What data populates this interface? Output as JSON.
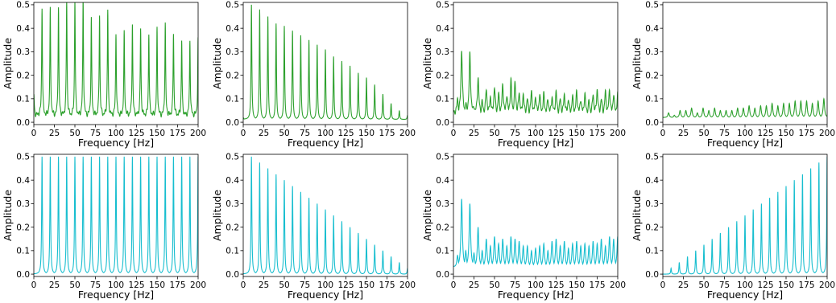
{
  "figure": {
    "layout": "2 rows x 4 columns"
  },
  "chart_data": [
    {
      "type": "line",
      "title": "",
      "xlabel": "Frequency [Hz]",
      "ylabel": "Amplitude",
      "xlim": [
        0,
        200
      ],
      "ylim": [
        -0.01,
        0.51
      ],
      "xticks": [
        0,
        25,
        50,
        75,
        100,
        125,
        150,
        175,
        200
      ],
      "yticks": [
        0.0,
        0.1,
        0.2,
        0.3,
        0.4,
        0.5
      ],
      "color": "#2ca02c",
      "series": [
        {
          "x": [
            0,
            10,
            20,
            30,
            40,
            50,
            60,
            70,
            80,
            90,
            100,
            110,
            120,
            130,
            140,
            150,
            160,
            170,
            180,
            190,
            200
          ],
          "peaks": [
            0.12,
            0.49,
            0.48,
            0.49,
            0.52,
            0.52,
            0.52,
            0.44,
            0.46,
            0.48,
            0.38,
            0.38,
            0.42,
            0.4,
            0.38,
            0.4,
            0.42,
            0.38,
            0.35,
            0.35,
            0.35
          ],
          "baseline": 0.03
        }
      ]
    },
    {
      "type": "line",
      "title": "",
      "xlabel": "Frequency [Hz]",
      "ylabel": "Amplitude",
      "xlim": [
        0,
        200
      ],
      "ylim": [
        -0.01,
        0.51
      ],
      "xticks": [
        0,
        25,
        50,
        75,
        100,
        125,
        150,
        175,
        200
      ],
      "yticks": [
        0.0,
        0.1,
        0.2,
        0.3,
        0.4,
        0.5
      ],
      "color": "#2ca02c",
      "series": [
        {
          "x": [
            0,
            10,
            20,
            30,
            40,
            50,
            60,
            70,
            80,
            90,
            100,
            110,
            120,
            130,
            140,
            150,
            160,
            170,
            180,
            190,
            200
          ],
          "peaks": [
            0.02,
            0.5,
            0.48,
            0.45,
            0.42,
            0.41,
            0.39,
            0.37,
            0.35,
            0.33,
            0.31,
            0.28,
            0.26,
            0.24,
            0.21,
            0.19,
            0.16,
            0.12,
            0.08,
            0.05,
            0.03
          ],
          "baseline": 0.012
        }
      ]
    },
    {
      "type": "line",
      "title": "",
      "xlabel": "Frequency [Hz]",
      "ylabel": "Amplitude",
      "xlim": [
        0,
        200
      ],
      "ylim": [
        -0.01,
        0.51
      ],
      "xticks": [
        0,
        25,
        50,
        75,
        100,
        125,
        150,
        175,
        200
      ],
      "yticks": [
        0.0,
        0.1,
        0.2,
        0.3,
        0.4,
        0.5
      ],
      "color": "#2ca02c",
      "series": [
        {
          "x": [
            0,
            5,
            10,
            15,
            20,
            25,
            30,
            35,
            40,
            45,
            50,
            55,
            60,
            65,
            70,
            75,
            80,
            85,
            90,
            95,
            100,
            105,
            110,
            115,
            120,
            125,
            130,
            135,
            140,
            145,
            150,
            155,
            160,
            165,
            170,
            175,
            180,
            185,
            190,
            195,
            200
          ],
          "peaks": [
            0.03,
            0.1,
            0.31,
            0.08,
            0.29,
            0.07,
            0.19,
            0.09,
            0.14,
            0.11,
            0.15,
            0.12,
            0.16,
            0.12,
            0.18,
            0.17,
            0.13,
            0.12,
            0.1,
            0.13,
            0.11,
            0.12,
            0.12,
            0.1,
            0.11,
            0.13,
            0.1,
            0.12,
            0.1,
            0.11,
            0.13,
            0.1,
            0.12,
            0.09,
            0.12,
            0.14,
            0.1,
            0.13,
            0.14,
            0.12,
            0.12
          ],
          "baseline": 0.04
        }
      ]
    },
    {
      "type": "line",
      "title": "",
      "xlabel": "Frequency [Hz]",
      "ylabel": "Amplitude",
      "xlim": [
        0,
        200
      ],
      "ylim": [
        -0.01,
        0.51
      ],
      "xticks": [
        0,
        25,
        50,
        75,
        100,
        125,
        150,
        175,
        200
      ],
      "yticks": [
        0.0,
        0.1,
        0.2,
        0.3,
        0.4,
        0.5
      ],
      "color": "#2ca02c",
      "series": [
        {
          "x": [
            0,
            7,
            14,
            21,
            28,
            35,
            42,
            49,
            56,
            63,
            70,
            77,
            84,
            91,
            98,
            105,
            112,
            119,
            126,
            133,
            140,
            147,
            154,
            161,
            168,
            175,
            182,
            189,
            196
          ],
          "peaks": [
            0.02,
            0.04,
            0.03,
            0.05,
            0.05,
            0.06,
            0.04,
            0.06,
            0.05,
            0.06,
            0.05,
            0.05,
            0.05,
            0.06,
            0.06,
            0.07,
            0.06,
            0.07,
            0.07,
            0.08,
            0.07,
            0.08,
            0.08,
            0.09,
            0.09,
            0.09,
            0.08,
            0.09,
            0.1
          ],
          "baseline": 0.02
        }
      ]
    },
    {
      "type": "line",
      "title": "",
      "xlabel": "Frequency [Hz]",
      "ylabel": "Amplitude",
      "xlim": [
        0,
        200
      ],
      "ylim": [
        -0.01,
        0.51
      ],
      "xticks": [
        0,
        25,
        50,
        75,
        100,
        125,
        150,
        175,
        200
      ],
      "yticks": [
        0.0,
        0.1,
        0.2,
        0.3,
        0.4,
        0.5
      ],
      "color": "#17becf",
      "series": [
        {
          "x": [
            10,
            20,
            30,
            40,
            50,
            60,
            70,
            80,
            90,
            100,
            110,
            120,
            130,
            140,
            150,
            160,
            170,
            180,
            190,
            200
          ],
          "peaks": [
            0.5,
            0.5,
            0.5,
            0.5,
            0.5,
            0.5,
            0.5,
            0.5,
            0.5,
            0.5,
            0.5,
            0.5,
            0.5,
            0.5,
            0.5,
            0.5,
            0.5,
            0.5,
            0.5,
            0.5
          ],
          "baseline": 0.0
        }
      ]
    },
    {
      "type": "line",
      "title": "",
      "xlabel": "Frequency [Hz]",
      "ylabel": "Amplitude",
      "xlim": [
        0,
        200
      ],
      "ylim": [
        -0.01,
        0.51
      ],
      "xticks": [
        0,
        25,
        50,
        75,
        100,
        125,
        150,
        175,
        200
      ],
      "yticks": [
        0.0,
        0.1,
        0.2,
        0.3,
        0.4,
        0.5
      ],
      "color": "#17becf",
      "series": [
        {
          "x": [
            10,
            20,
            30,
            40,
            50,
            60,
            70,
            80,
            90,
            100,
            110,
            120,
            130,
            140,
            150,
            160,
            170,
            180,
            190,
            200
          ],
          "peaks": [
            0.5,
            0.475,
            0.45,
            0.425,
            0.4,
            0.375,
            0.35,
            0.325,
            0.3,
            0.275,
            0.25,
            0.225,
            0.2,
            0.175,
            0.15,
            0.125,
            0.1,
            0.075,
            0.05,
            0.025
          ],
          "baseline": 0.0
        }
      ]
    },
    {
      "type": "line",
      "title": "",
      "xlabel": "Frequency [Hz]",
      "ylabel": "Amplitude",
      "xlim": [
        0,
        200
      ],
      "ylim": [
        -0.01,
        0.51
      ],
      "xticks": [
        0,
        25,
        50,
        75,
        100,
        125,
        150,
        175,
        200
      ],
      "yticks": [
        0.0,
        0.1,
        0.2,
        0.3,
        0.4,
        0.5
      ],
      "color": "#17becf",
      "series": [
        {
          "x": [
            0,
            5,
            10,
            15,
            20,
            25,
            30,
            35,
            40,
            45,
            50,
            55,
            60,
            65,
            70,
            75,
            80,
            85,
            90,
            95,
            100,
            105,
            110,
            115,
            120,
            125,
            130,
            135,
            140,
            145,
            150,
            155,
            160,
            165,
            170,
            175,
            180,
            185,
            190,
            195,
            200
          ],
          "peaks": [
            0.03,
            0.08,
            0.32,
            0.1,
            0.3,
            0.09,
            0.2,
            0.1,
            0.15,
            0.12,
            0.16,
            0.13,
            0.15,
            0.12,
            0.16,
            0.15,
            0.14,
            0.12,
            0.12,
            0.1,
            0.11,
            0.12,
            0.13,
            0.1,
            0.14,
            0.15,
            0.12,
            0.14,
            0.11,
            0.13,
            0.14,
            0.12,
            0.13,
            0.12,
            0.14,
            0.13,
            0.15,
            0.12,
            0.16,
            0.15,
            0.16
          ],
          "baseline": 0.03
        }
      ]
    },
    {
      "type": "line",
      "title": "",
      "xlabel": "Frequency [Hz]",
      "ylabel": "Amplitude",
      "xlim": [
        0,
        200
      ],
      "ylim": [
        -0.01,
        0.51
      ],
      "xticks": [
        0,
        25,
        50,
        75,
        100,
        125,
        150,
        175,
        200
      ],
      "yticks": [
        0.0,
        0.1,
        0.2,
        0.3,
        0.4,
        0.5
      ],
      "color": "#17becf",
      "series": [
        {
          "x": [
            0,
            10,
            20,
            30,
            40,
            50,
            60,
            70,
            80,
            90,
            100,
            110,
            120,
            130,
            140,
            150,
            160,
            170,
            180,
            190,
            200
          ],
          "peaks": [
            0.0,
            0.025,
            0.05,
            0.075,
            0.1,
            0.125,
            0.15,
            0.175,
            0.2,
            0.225,
            0.25,
            0.275,
            0.3,
            0.325,
            0.35,
            0.375,
            0.4,
            0.425,
            0.45,
            0.475,
            0.5
          ],
          "baseline": 0.0
        }
      ]
    }
  ]
}
